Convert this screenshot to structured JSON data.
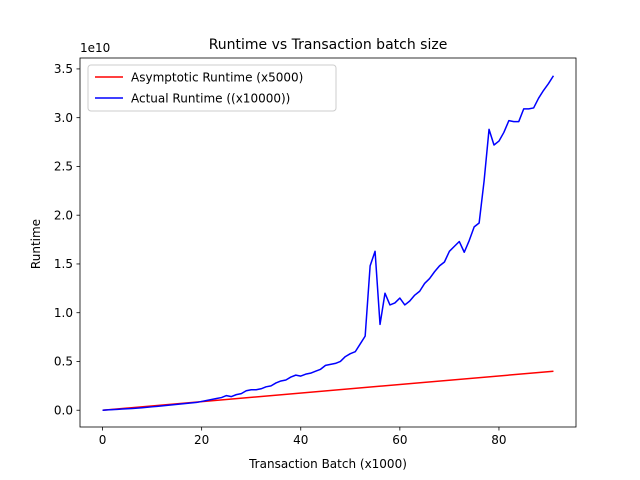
{
  "chart_data": {
    "type": "line",
    "title": "Runtime vs Transaction batch size",
    "xlabel": "Transaction Batch (x1000)",
    "ylabel": "Runtime",
    "y_offset_text": "1e10",
    "y_multiplier": 10000000000,
    "xlim": [
      -4.55,
      95.55
    ],
    "ylim": [
      -0.172,
      3.612
    ],
    "xticks": [
      0,
      20,
      40,
      60,
      80
    ],
    "xtick_labels": [
      "0",
      "20",
      "40",
      "60",
      "80"
    ],
    "yticks": [
      0.0,
      0.5,
      1.0,
      1.5,
      2.0,
      2.5,
      3.0,
      3.5
    ],
    "ytick_labels": [
      "0.0",
      "0.5",
      "1.0",
      "1.5",
      "2.0",
      "2.5",
      "3.0",
      "3.5"
    ],
    "grid": false,
    "legend_position": "top-left",
    "series": [
      {
        "name": "Asymptotic Runtime (x5000)",
        "color": "#ff0000",
        "x": [
          0,
          91
        ],
        "y": [
          0.0,
          0.4
        ]
      },
      {
        "name": "Actual Runtime ((x10000))",
        "color": "#0000ff",
        "x": [
          0,
          1,
          2,
          3,
          4,
          5,
          6,
          7,
          8,
          9,
          10,
          11,
          12,
          13,
          14,
          15,
          16,
          17,
          18,
          19,
          20,
          21,
          22,
          23,
          24,
          25,
          26,
          27,
          28,
          29,
          30,
          31,
          32,
          33,
          34,
          35,
          36,
          37,
          38,
          39,
          40,
          41,
          42,
          43,
          44,
          45,
          46,
          47,
          48,
          49,
          50,
          51,
          52,
          53,
          54,
          55,
          56,
          57,
          58,
          59,
          60,
          61,
          62,
          63,
          64,
          65,
          66,
          67,
          68,
          69,
          70,
          71,
          72,
          73,
          74,
          75,
          76,
          77,
          78,
          79,
          80,
          81,
          82,
          83,
          84,
          85,
          86,
          87,
          88,
          89,
          90,
          91
        ],
        "y": [
          0.0,
          0.003,
          0.006,
          0.009,
          0.012,
          0.015,
          0.018,
          0.021,
          0.025,
          0.03,
          0.035,
          0.04,
          0.045,
          0.05,
          0.055,
          0.06,
          0.065,
          0.07,
          0.075,
          0.08,
          0.09,
          0.1,
          0.11,
          0.12,
          0.13,
          0.15,
          0.14,
          0.16,
          0.17,
          0.2,
          0.21,
          0.21,
          0.22,
          0.24,
          0.25,
          0.28,
          0.3,
          0.31,
          0.34,
          0.36,
          0.35,
          0.37,
          0.38,
          0.4,
          0.42,
          0.46,
          0.47,
          0.48,
          0.5,
          0.55,
          0.58,
          0.6,
          0.68,
          0.76,
          1.48,
          1.63,
          0.88,
          1.2,
          1.08,
          1.1,
          1.15,
          1.08,
          1.12,
          1.18,
          1.22,
          1.3,
          1.35,
          1.42,
          1.48,
          1.52,
          1.63,
          1.68,
          1.73,
          1.62,
          1.74,
          1.88,
          1.92,
          2.35,
          2.88,
          2.72,
          2.76,
          2.85,
          2.97,
          2.96,
          2.96,
          3.09,
          3.09,
          3.1,
          3.2,
          3.28,
          3.35,
          3.43
        ]
      }
    ]
  }
}
